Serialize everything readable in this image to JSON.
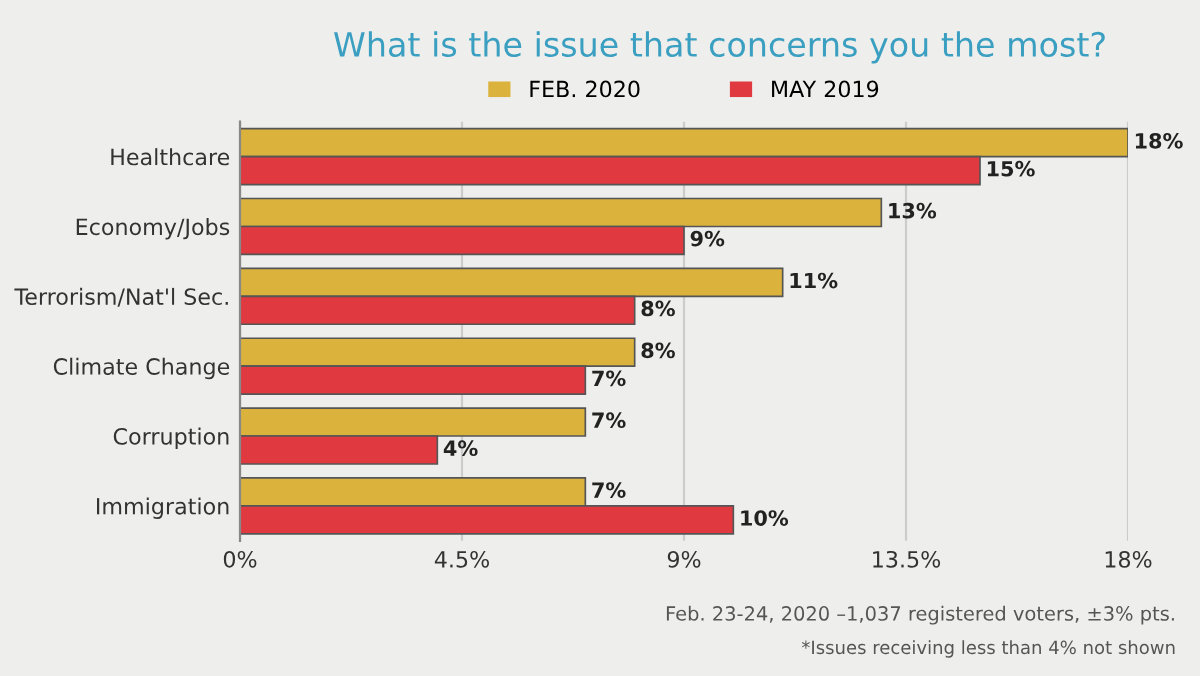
{
  "chart_data": {
    "type": "bar",
    "orientation": "horizontal",
    "title": "What is the issue that concerns you the most?",
    "categories": [
      "Healthcare",
      "Economy/Jobs",
      "Terrorism/Nat'l Sec.",
      "Climate Change",
      "Corruption",
      "Immigration"
    ],
    "series": [
      {
        "name": "FEB. 2020",
        "color": "#dbb33c",
        "values": [
          18,
          13,
          11,
          8,
          7,
          7
        ],
        "value_labels": [
          "18%",
          "13%",
          "11%",
          "8%",
          "7%",
          "7%"
        ]
      },
      {
        "name": "MAY 2019",
        "color": "#e03a40",
        "values": [
          15,
          9,
          8,
          7,
          4,
          10
        ],
        "value_labels": [
          "15%",
          "9%",
          "8%",
          "7%",
          "4%",
          "10%"
        ]
      }
    ],
    "xlim": [
      0,
      18
    ],
    "xticks": [
      {
        "value": 0,
        "label": "0%"
      },
      {
        "value": 4.5,
        "label": "4.5%"
      },
      {
        "value": 9,
        "label": "9%"
      },
      {
        "value": 13.5,
        "label": "13.5%"
      },
      {
        "value": 18,
        "label": "18%"
      }
    ],
    "grid": "x",
    "legend": "top",
    "annotations": [
      "Feb. 23-24, 2020 –1,037 registered voters, ±3% pts.",
      "*Issues receiving less than 4% not shown"
    ]
  }
}
